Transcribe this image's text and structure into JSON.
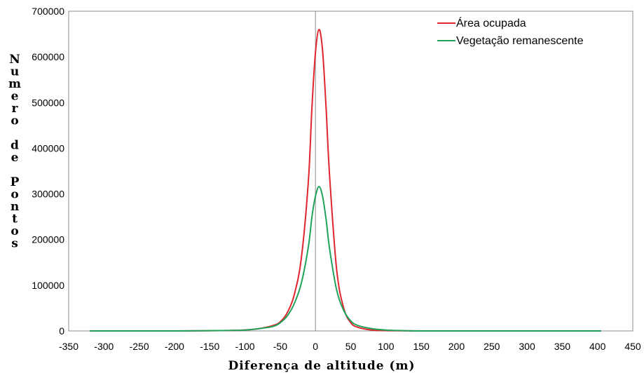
{
  "chart_data": {
    "type": "line",
    "title": "",
    "xlabel": "Diferença de altitude (m)",
    "ylabel": "Numero de Pontos",
    "xlim": [
      -350,
      450
    ],
    "ylim": [
      0,
      700000
    ],
    "x_ticks": [
      -350,
      -300,
      -250,
      -200,
      -150,
      -100,
      -50,
      0,
      50,
      100,
      150,
      200,
      250,
      300,
      350,
      400,
      450
    ],
    "y_ticks": [
      0,
      100000,
      200000,
      300000,
      400000,
      500000,
      600000,
      700000
    ],
    "grid": false,
    "vertical_reference_line_x": 0,
    "legend_position": "top-right",
    "x": [
      -320,
      -200,
      -150,
      -120,
      -100,
      -80,
      -60,
      -50,
      -40,
      -30,
      -20,
      -10,
      -5,
      0,
      5,
      10,
      15,
      20,
      30,
      40,
      50,
      60,
      80,
      100,
      120,
      150,
      200,
      300,
      405
    ],
    "series": [
      {
        "name": "Área ocupada",
        "color": "#e0262d",
        "values": [
          0,
          0,
          500,
          1000,
          2000,
          5000,
          12000,
          20000,
          40000,
          80000,
          160000,
          330000,
          490000,
          610000,
          660000,
          615000,
          490000,
          340000,
          135000,
          50000,
          18000,
          8000,
          2000,
          700,
          300,
          0,
          0,
          0,
          0
        ]
      },
      {
        "name": "Vegetação remanescente",
        "color": "#1fa35a",
        "values": [
          0,
          0,
          500,
          1000,
          2000,
          5000,
          10000,
          18000,
          33000,
          60000,
          105000,
          185000,
          250000,
          295000,
          316000,
          295000,
          245000,
          180000,
          90000,
          45000,
          22000,
          12000,
          5000,
          2000,
          800,
          0,
          0,
          0,
          0
        ]
      }
    ]
  }
}
